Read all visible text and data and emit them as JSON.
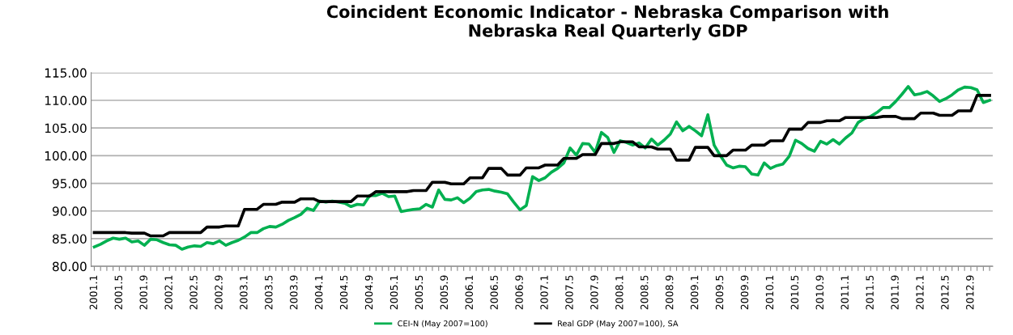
{
  "chart_data": {
    "type": "line",
    "title": "Coincident Economic Indicator - Nebraska Comparison with\nNebraska Real Quarterly GDP",
    "categories": [
      "2001.1",
      null,
      null,
      null,
      "2001.5",
      null,
      null,
      null,
      "2001.9",
      null,
      null,
      null,
      "2002.1",
      null,
      null,
      null,
      "2002.5",
      null,
      null,
      null,
      "2002.9",
      null,
      null,
      null,
      "2003.1",
      null,
      null,
      null,
      "2003.5",
      null,
      null,
      null,
      "2003.9",
      null,
      null,
      null,
      "2004.1",
      null,
      null,
      null,
      "2004.5",
      null,
      null,
      null,
      "2004.9",
      null,
      null,
      null,
      "2005.1",
      null,
      null,
      null,
      "2005.5",
      null,
      null,
      null,
      "2005.9",
      null,
      null,
      null,
      "2006.1",
      null,
      null,
      null,
      "2006.5",
      null,
      null,
      null,
      "2006.9",
      null,
      null,
      null,
      "2007.1",
      null,
      null,
      null,
      "2007.5",
      null,
      null,
      null,
      "2007.9",
      null,
      null,
      null,
      "2008.1",
      null,
      null,
      null,
      "2008.5",
      null,
      null,
      null,
      "2008.9",
      null,
      null,
      null,
      "2009.1",
      null,
      null,
      null,
      "2009.5",
      null,
      null,
      null,
      "2009.9",
      null,
      null,
      null,
      "2010.1",
      null,
      null,
      null,
      "2010.5",
      null,
      null,
      null,
      "2010.9",
      null,
      null,
      null,
      "2011.1",
      null,
      null,
      null,
      "2011.5",
      null,
      null,
      null,
      "2011.9",
      null,
      null,
      null,
      "2012.1",
      null,
      null,
      null,
      "2012.5",
      null,
      null,
      null,
      "2012.9",
      null,
      null,
      null
    ],
    "series": [
      {
        "name": "CEI-N (May 2007=100)",
        "color": "#00b050",
        "values": [
          83.5,
          84.0,
          84.6,
          85.1,
          84.9,
          85.1,
          84.4,
          84.6,
          83.8,
          84.9,
          84.8,
          84.3,
          83.9,
          83.8,
          83.1,
          83.5,
          83.7,
          83.6,
          84.3,
          84.1,
          84.6,
          83.8,
          84.3,
          84.7,
          85.3,
          86.1,
          86.1,
          86.8,
          87.2,
          87.1,
          87.6,
          88.3,
          88.8,
          89.4,
          90.5,
          90.1,
          91.8,
          91.6,
          91.8,
          91.6,
          91.4,
          90.8,
          91.2,
          91.1,
          92.8,
          92.8,
          93.2,
          92.6,
          92.7,
          89.9,
          90.1,
          90.3,
          90.4,
          91.2,
          90.7,
          93.8,
          92.1,
          92.0,
          92.4,
          91.5,
          92.3,
          93.5,
          93.8,
          93.9,
          93.6,
          93.4,
          93.1,
          91.6,
          90.2,
          91.0,
          96.2,
          95.5,
          96.0,
          97.0,
          97.7,
          98.7,
          101.4,
          100.1,
          102.2,
          102.1,
          100.6,
          104.2,
          103.3,
          100.6,
          102.7,
          102.4,
          101.9,
          102.3,
          101.4,
          103.0,
          101.9,
          102.8,
          103.9,
          106.1,
          104.5,
          105.3,
          104.5,
          103.6,
          107.4,
          101.9,
          100.0,
          98.3,
          97.8,
          98.1,
          98.0,
          96.7,
          96.5,
          98.7,
          97.7,
          98.2,
          98.5,
          99.9,
          102.8,
          102.2,
          101.3,
          100.8,
          102.6,
          102.1,
          102.9,
          102.1,
          103.2,
          104.1,
          106.0,
          106.7,
          107.1,
          107.8,
          108.7,
          108.7,
          109.8,
          111.1,
          112.5,
          111.0,
          111.2,
          111.6,
          110.8,
          109.8,
          110.3,
          111.0,
          111.9,
          112.4,
          112.3,
          111.9,
          109.6,
          110.0
        ]
      },
      {
        "name": "Real GDP (May 2007=100), SA",
        "color": "#000000",
        "values": [
          86.1,
          86.1,
          86.1,
          86.1,
          86.1,
          86.1,
          86.0,
          86.0,
          86.0,
          85.5,
          85.5,
          85.5,
          86.1,
          86.1,
          86.1,
          86.1,
          86.1,
          86.1,
          87.1,
          87.1,
          87.1,
          87.3,
          87.3,
          87.3,
          90.3,
          90.3,
          90.3,
          91.2,
          91.2,
          91.2,
          91.6,
          91.6,
          91.6,
          92.2,
          92.2,
          92.2,
          91.7,
          91.7,
          91.7,
          91.7,
          91.7,
          91.7,
          92.7,
          92.7,
          92.7,
          93.5,
          93.5,
          93.5,
          93.5,
          93.5,
          93.5,
          93.7,
          93.7,
          93.7,
          95.2,
          95.2,
          95.2,
          94.9,
          94.9,
          94.9,
          96.0,
          96.0,
          96.0,
          97.7,
          97.7,
          97.7,
          96.5,
          96.5,
          96.5,
          97.8,
          97.8,
          97.8,
          98.3,
          98.3,
          98.3,
          99.5,
          99.5,
          99.5,
          100.2,
          100.2,
          100.2,
          102.2,
          102.2,
          102.2,
          102.5,
          102.5,
          102.5,
          101.6,
          101.6,
          101.6,
          101.2,
          101.2,
          101.2,
          99.2,
          99.2,
          99.2,
          101.5,
          101.5,
          101.5,
          100.0,
          100.0,
          100.0,
          101.0,
          101.0,
          101.0,
          101.9,
          101.9,
          101.9,
          102.7,
          102.7,
          102.7,
          104.8,
          104.8,
          104.8,
          106.0,
          106.0,
          106.0,
          106.3,
          106.3,
          106.3,
          106.9,
          106.9,
          106.9,
          106.9,
          106.9,
          106.9,
          107.1,
          107.1,
          107.1,
          106.7,
          106.7,
          106.7,
          107.7,
          107.7,
          107.7,
          107.3,
          107.3,
          107.3,
          108.1,
          108.1,
          108.1,
          110.9,
          110.9,
          110.9
        ]
      }
    ],
    "ylim": [
      80,
      115
    ],
    "yticks": [
      {
        "value": 80,
        "label": "80.00"
      },
      {
        "value": 85,
        "label": "85.00"
      },
      {
        "value": 90,
        "label": "90.00"
      },
      {
        "value": 95,
        "label": "95.00"
      },
      {
        "value": 100,
        "label": "100.00"
      },
      {
        "value": 105,
        "label": "105.00"
      },
      {
        "value": 110,
        "label": "110.00"
      },
      {
        "value": 115,
        "label": "115.00"
      }
    ],
    "grid": "y",
    "legend": "bottom",
    "marker": "none",
    "line_style": "solid"
  }
}
